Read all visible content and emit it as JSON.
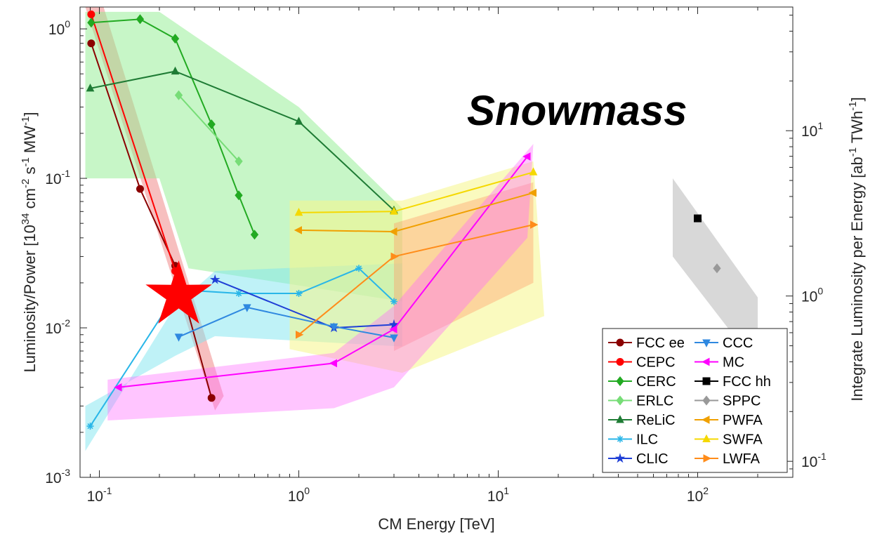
{
  "chart_data": {
    "type": "line",
    "watermark": "Snowmass",
    "xscale": "log",
    "yscale": "log",
    "xlim": [
      0.08,
      300
    ],
    "ylim": [
      0.001,
      1.4
    ],
    "y2lim": [
      0.08,
      56
    ],
    "xlabel": "CM Energy [TeV]",
    "ylabel": {
      "parts": [
        {
          "t": "Luminosity/Power [10"
        },
        {
          "t": "34",
          "sup": true
        },
        {
          "t": " cm"
        },
        {
          "t": "-2",
          "sup": true
        },
        {
          "t": " s"
        },
        {
          "t": "-1",
          "sup": true
        },
        {
          "t": " MW"
        },
        {
          "t": "-1",
          "sup": true
        },
        {
          "t": "]"
        }
      ]
    },
    "y2label": {
      "parts": [
        {
          "t": "Integrate Luminosity per Energy [ab"
        },
        {
          "t": "-1",
          "sup": true
        },
        {
          "t": " TWh"
        },
        {
          "t": "-1",
          "sup": true
        },
        {
          "t": "]"
        }
      ]
    },
    "xticks": [
      {
        "v": 0.1,
        "base": "10",
        "exp": "-1"
      },
      {
        "v": 1,
        "base": "10",
        "exp": "0"
      },
      {
        "v": 10,
        "base": "10",
        "exp": "1"
      },
      {
        "v": 100,
        "base": "10",
        "exp": "2"
      }
    ],
    "yticks": [
      {
        "v": 0.001,
        "base": "10",
        "exp": "-3"
      },
      {
        "v": 0.01,
        "base": "10",
        "exp": "-2"
      },
      {
        "v": 0.1,
        "base": "10",
        "exp": "-1"
      },
      {
        "v": 1,
        "base": "10",
        "exp": "0"
      }
    ],
    "y2ticks": [
      {
        "v": 0.1,
        "base": "10",
        "exp": "-1"
      },
      {
        "v": 1,
        "base": "10",
        "exp": "0"
      },
      {
        "v": 10,
        "base": "10",
        "exp": "1"
      }
    ],
    "bands": [
      {
        "name": "FCC ee",
        "color": "#f08080",
        "opacity": 0.5,
        "points": [
          [
            0.085,
            1.4
          ],
          [
            0.105,
            1.4
          ],
          [
            0.42,
            0.0035
          ],
          [
            0.38,
            0.0028
          ]
        ]
      },
      {
        "name": "CERC",
        "color": "#90ee90",
        "opacity": 0.5,
        "points": [
          [
            0.085,
            1.3
          ],
          [
            0.2,
            1.3
          ],
          [
            1.0,
            0.3
          ],
          [
            3.3,
            0.063
          ],
          [
            3.3,
            0.015
          ],
          [
            0.28,
            0.025
          ],
          [
            0.2,
            0.1
          ],
          [
            0.085,
            0.1
          ]
        ]
      },
      {
        "name": "ILC",
        "color": "#7fe5f0",
        "opacity": 0.5,
        "points": [
          [
            0.085,
            0.0015
          ],
          [
            0.24,
            0.014
          ],
          [
            0.38,
            0.024
          ],
          [
            3.3,
            0.027
          ],
          [
            3.3,
            0.0075
          ],
          [
            0.38,
            0.0088
          ],
          [
            0.24,
            0.0065
          ],
          [
            0.085,
            0.003
          ]
        ]
      },
      {
        "name": "SWFA",
        "color": "#f5f58a",
        "opacity": 0.55,
        "points": [
          [
            0.9,
            0.071
          ],
          [
            3.3,
            0.071
          ],
          [
            15,
            0.13
          ],
          [
            17,
            0.012
          ],
          [
            3.3,
            0.005
          ],
          [
            0.9,
            0.0072
          ]
        ]
      },
      {
        "name": "PWFA",
        "color": "#ff9966",
        "opacity": 0.38,
        "points": [
          [
            3,
            0.05
          ],
          [
            15,
            0.094
          ],
          [
            15,
            0.02
          ],
          [
            3,
            0.007
          ]
        ]
      },
      {
        "name": "MC",
        "color": "#ff66ff",
        "opacity": 0.38,
        "points": [
          [
            0.11,
            0.0045
          ],
          [
            1.5,
            0.0068
          ],
          [
            3,
            0.014
          ],
          [
            15,
            0.17
          ],
          [
            14,
            0.04
          ],
          [
            3,
            0.004
          ],
          [
            1.5,
            0.0029
          ],
          [
            0.11,
            0.0024
          ]
        ]
      },
      {
        "name": "FCC hh",
        "color": "#c8c8c8",
        "opacity": 0.7,
        "points": [
          [
            75,
            0.1
          ],
          [
            200,
            0.016
          ],
          [
            200,
            0.0055
          ],
          [
            75,
            0.03
          ]
        ]
      }
    ],
    "series": [
      {
        "name": "FCC ee",
        "color": "#8b0000",
        "marker": "circle",
        "x": [
          0.091,
          0.16,
          0.24,
          0.365
        ],
        "y": [
          0.8,
          0.085,
          0.026,
          0.0034
        ]
      },
      {
        "name": "CEPC",
        "color": "#ff0000",
        "marker": "circle",
        "x": [
          0.091,
          0.24
        ],
        "y": [
          1.25,
          0.024
        ]
      },
      {
        "name": "CERC",
        "color": "#22aa22",
        "marker": "diamond",
        "x": [
          0.091,
          0.16,
          0.24,
          0.365,
          0.5,
          0.6
        ],
        "y": [
          1.1,
          1.16,
          0.86,
          0.23,
          0.077,
          0.042
        ]
      },
      {
        "name": "ERLC",
        "color": "#77dd77",
        "marker": "diamond",
        "x": [
          0.25,
          0.5
        ],
        "y": [
          0.36,
          0.13
        ]
      },
      {
        "name": "ReLiC",
        "color": "#1e7b34",
        "marker": "triangle-up",
        "x": [
          0.09,
          0.24,
          1.0,
          3.0
        ],
        "y": [
          0.4,
          0.52,
          0.24,
          0.061
        ]
      },
      {
        "name": "ILC",
        "color": "#29b6e8",
        "marker": "asterisk",
        "x": [
          0.09,
          0.25,
          0.5,
          1.0,
          2.0,
          3.0
        ],
        "y": [
          0.0022,
          0.018,
          0.017,
          0.017,
          0.025,
          0.015
        ]
      },
      {
        "name": "CLIC",
        "color": "#1f3fd6",
        "marker": "star",
        "x": [
          0.38,
          1.5,
          3.0
        ],
        "y": [
          0.021,
          0.01,
          0.0105
        ]
      },
      {
        "name": "CCC",
        "color": "#2f88e0",
        "marker": "triangle-down",
        "x": [
          0.25,
          0.55,
          1.5,
          3.0
        ],
        "y": [
          0.0087,
          0.0137,
          0.0102,
          0.0086
        ]
      },
      {
        "name": "MC",
        "color": "#ff00ff",
        "marker": "triangle-left",
        "x": [
          0.125,
          1.5,
          3.0,
          14.0
        ],
        "y": [
          0.004,
          0.0058,
          0.0098,
          0.14
        ]
      },
      {
        "name": "FCC hh",
        "color": "#000000",
        "marker": "square",
        "x": [
          100
        ],
        "y": [
          0.054
        ]
      },
      {
        "name": "SPPC",
        "color": "#999999",
        "marker": "diamond",
        "x": [
          125
        ],
        "y": [
          0.025
        ]
      },
      {
        "name": "PWFA",
        "color": "#f0a000",
        "marker": "triangle-left",
        "x": [
          1.0,
          3.0,
          15.0
        ],
        "y": [
          0.045,
          0.044,
          0.08
        ]
      },
      {
        "name": "SWFA",
        "color": "#f5d800",
        "marker": "triangle-up",
        "x": [
          1.0,
          3.0,
          15.0
        ],
        "y": [
          0.059,
          0.06,
          0.11
        ]
      },
      {
        "name": "LWFA",
        "color": "#ff8c1a",
        "marker": "triangle-right",
        "x": [
          1.0,
          3.0,
          15.0
        ],
        "y": [
          0.009,
          0.03,
          0.049
        ]
      }
    ],
    "legend": {
      "location": "bottom-right",
      "columns": 2
    },
    "highlight": {
      "shape": "star",
      "color": "#ff0000",
      "x": 0.25,
      "y": 0.0165
    }
  }
}
